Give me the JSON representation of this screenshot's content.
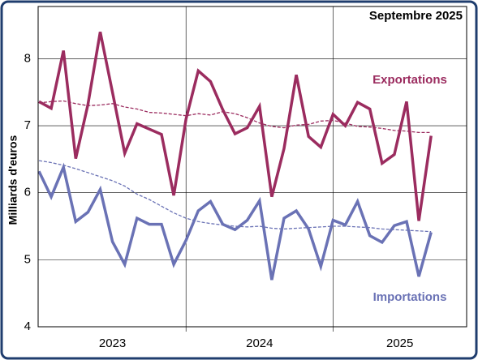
{
  "chart_data": {
    "type": "line",
    "title": "Septembre 2025",
    "y_label": "Milliards d'euros",
    "categories": [
      "2023",
      null,
      null,
      null,
      null,
      null,
      null,
      null,
      null,
      null,
      null,
      null,
      "2024",
      null,
      null,
      null,
      null,
      null,
      null,
      null,
      null,
      null,
      null,
      null,
      "2025",
      null,
      null,
      null,
      null,
      null,
      null,
      null,
      null
    ],
    "series": [
      {
        "name": "Exportations",
        "color": "#9b2c5f",
        "dashed": false,
        "values": [
          7.36,
          7.26,
          8.12,
          6.51,
          7.32,
          8.4,
          7.5,
          6.59,
          7.03,
          6.95,
          6.87,
          5.96,
          7.1,
          7.82,
          7.66,
          7.24,
          6.88,
          6.97,
          7.29,
          5.94,
          6.66,
          7.76,
          6.84,
          6.68,
          7.17,
          7.0,
          7.35,
          7.25,
          6.44,
          6.57,
          7.36,
          5.58,
          6.85
        ]
      },
      {
        "color": "#9b2c5f",
        "dashed": true,
        "values": [
          7.34,
          7.36,
          7.37,
          7.33,
          7.3,
          7.31,
          7.33,
          7.28,
          7.25,
          7.2,
          7.19,
          7.17,
          7.15,
          7.18,
          7.16,
          7.21,
          7.18,
          7.12,
          7.04,
          6.99,
          6.97,
          7.01,
          7.02,
          7.07,
          7.08,
          7.04,
          6.99,
          6.98,
          6.96,
          6.93,
          6.92,
          6.9,
          6.9
        ]
      },
      {
        "name": "Importations",
        "color": "#6a72b5",
        "dashed": false,
        "values": [
          6.32,
          5.94,
          6.38,
          5.57,
          5.71,
          6.05,
          5.27,
          4.93,
          5.62,
          5.53,
          5.53,
          4.93,
          5.29,
          5.73,
          5.87,
          5.53,
          5.45,
          5.59,
          5.88,
          4.7,
          5.62,
          5.73,
          5.46,
          4.9,
          5.59,
          5.52,
          5.87,
          5.36,
          5.26,
          5.51,
          5.57,
          4.75,
          5.41
        ]
      },
      {
        "color": "#6a72b5",
        "dashed": true,
        "values": [
          6.48,
          6.45,
          6.41,
          6.36,
          6.3,
          6.24,
          6.18,
          6.1,
          5.98,
          5.9,
          5.8,
          5.7,
          5.62,
          5.57,
          5.54,
          5.52,
          5.5,
          5.49,
          5.5,
          5.47,
          5.46,
          5.47,
          5.48,
          5.49,
          5.5,
          5.5,
          5.49,
          5.48,
          5.46,
          5.45,
          5.44,
          5.43,
          5.42
        ]
      }
    ],
    "ylim": [
      4,
      8.78
    ],
    "yticks": [
      4,
      5,
      6,
      7,
      8
    ],
    "grid": true
  }
}
